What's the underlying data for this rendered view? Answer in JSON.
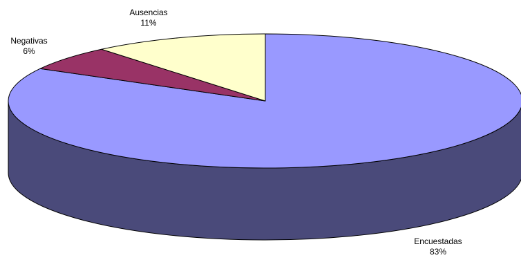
{
  "chart_data": {
    "type": "pie",
    "style": "3d",
    "start_angle_deg": 90,
    "direction": "clockwise",
    "slices": [
      {
        "name": "Encuestadas",
        "value": 83,
        "label": "83%",
        "color": "#9999ff",
        "side_color": "#4a4a7a"
      },
      {
        "name": "Negativas",
        "value": 6,
        "label": "6%",
        "color": "#993366",
        "side_color": "#4a1932"
      },
      {
        "name": "Ausencias",
        "value": 11,
        "label": "11%",
        "color": "#ffffcc",
        "side_color": "#888866"
      }
    ],
    "legend": "none"
  }
}
